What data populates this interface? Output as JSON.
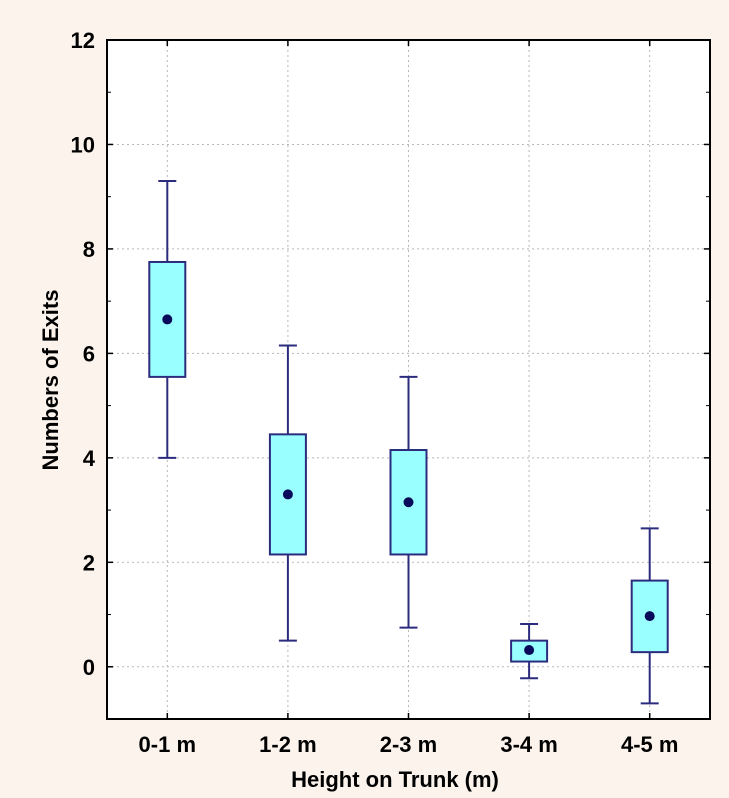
{
  "chart_data": {
    "type": "box",
    "xlabel": "Height on Trunk (m)",
    "ylabel": "Numbers of Exits",
    "ylim": [
      -1,
      12
    ],
    "yticks": [
      0,
      2,
      4,
      6,
      8,
      10,
      12
    ],
    "grid": true,
    "categories": [
      "0-1 m",
      "1-2 m",
      "2-3 m",
      "3-4 m",
      "4-5 m"
    ],
    "boxes": [
      {
        "whisker_low": 4.0,
        "q1": 5.55,
        "median": 6.65,
        "q3": 7.75,
        "whisker_high": 9.3
      },
      {
        "whisker_low": 0.5,
        "q1": 2.15,
        "median": 3.3,
        "q3": 4.45,
        "whisker_high": 6.15
      },
      {
        "whisker_low": 0.75,
        "q1": 2.15,
        "median": 3.15,
        "q3": 4.15,
        "whisker_high": 5.55
      },
      {
        "whisker_low": -0.22,
        "q1": 0.1,
        "median": 0.32,
        "q3": 0.5,
        "whisker_high": 0.82
      },
      {
        "whisker_low": -0.7,
        "q1": 0.28,
        "median": 0.97,
        "q3": 1.65,
        "whisker_high": 2.65
      }
    ],
    "colors": {
      "box_fill": "#99ffff",
      "box_stroke": "#2b2c7e",
      "median_marker": "#0a0a5a",
      "grid": "#b8b8b8",
      "plot_bg": "#ffffff",
      "page_bg": "#fbf3ec"
    }
  }
}
